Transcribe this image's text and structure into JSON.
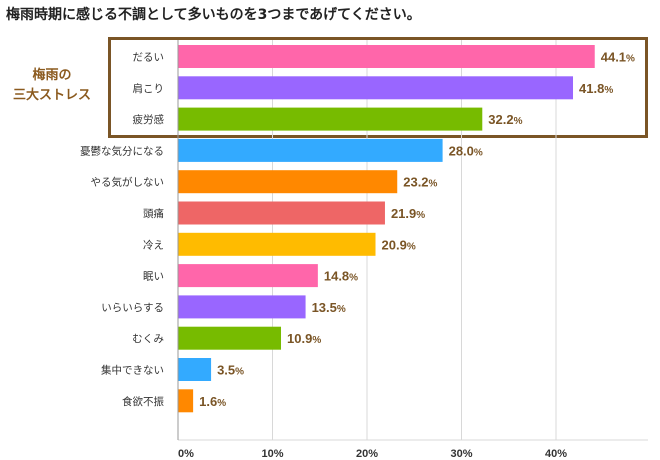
{
  "title": "梅雨時期に感じる不調として多いものを3つまであげてください。",
  "highlight": {
    "label_line1": "梅雨の",
    "label_line2": "三大ストレス",
    "border_color": "#7a5526"
  },
  "chart_data": {
    "type": "bar",
    "orientation": "horizontal",
    "categories": [
      "だるい",
      "肩こり",
      "疲労感",
      "憂鬱な気分になる",
      "やる気がしない",
      "頭痛",
      "冷え",
      "眠い",
      "いらいらする",
      "むくみ",
      "集中できない",
      "食欲不振"
    ],
    "values": [
      44.1,
      41.8,
      32.2,
      28.0,
      23.2,
      21.9,
      20.9,
      14.8,
      13.5,
      10.9,
      3.5,
      1.6
    ],
    "value_labels": [
      "44.1",
      "41.8",
      "32.2",
      "28.0",
      "23.2",
      "21.9",
      "20.9",
      "14.8",
      "13.5",
      "10.9",
      "3.5",
      "1.6"
    ],
    "value_unit": "%",
    "colors": [
      "#ff66aa",
      "#9966ff",
      "#77bb00",
      "#33aaff",
      "#ff8800",
      "#ee6666",
      "#ffbb00",
      "#ff66aa",
      "#9966ff",
      "#77bb00",
      "#33aaff",
      "#ff8800"
    ],
    "xlim": [
      0,
      50
    ],
    "x_ticks": [
      "0%",
      "10%",
      "20%",
      "30%",
      "40%"
    ],
    "x_tick_values": [
      0,
      10,
      20,
      30,
      40
    ],
    "grid": true
  }
}
